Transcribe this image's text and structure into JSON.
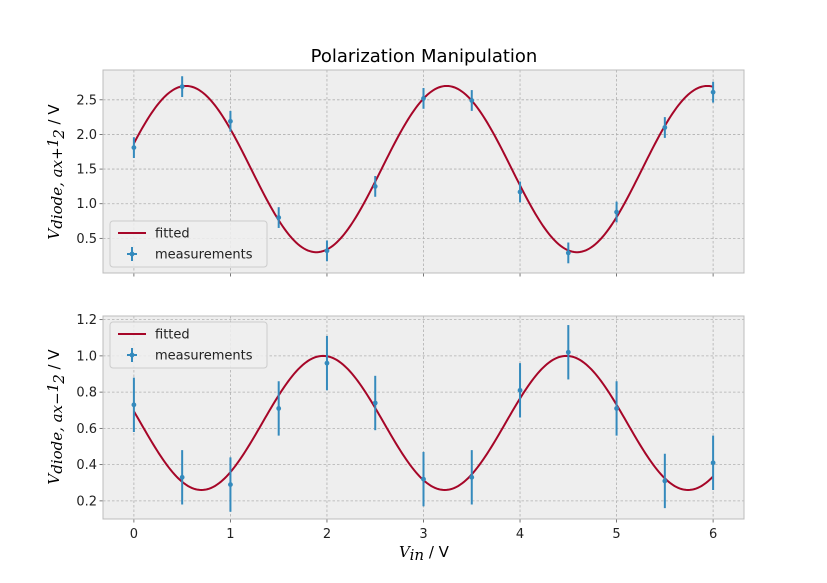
{
  "chart_data": {
    "type": "scatter",
    "title": "Polarization Manipulation",
    "xlabel": "V_in / V",
    "colors": {
      "fit": "#A60628",
      "meas": "#348ABD",
      "plot_bg": "#EEEEEE",
      "grid": "#B0B0B0"
    },
    "panels": [
      {
        "ylabel": "V_diode, ax+1/2 / V",
        "xlim": [
          -0.32,
          6.32
        ],
        "ylim": [
          0.0,
          2.93
        ],
        "xticks": [
          0,
          1,
          2,
          3,
          4,
          5,
          6
        ],
        "yticks": [
          0.5,
          1.0,
          1.5,
          2.0,
          2.5
        ],
        "ytick_labels": [
          "0.5",
          "1.0",
          "1.5",
          "2.0",
          "2.5"
        ],
        "legend": {
          "position": "lower-left",
          "entries": [
            "fitted",
            "measurements"
          ]
        },
        "fit": {
          "label": "fitted",
          "amplitude": 1.2,
          "offset": 1.5,
          "period": 2.7,
          "phase_x": 0.54
        },
        "measurements": {
          "label": "measurements",
          "x": [
            0,
            0.5,
            1,
            1.5,
            2,
            2.5,
            3,
            3.5,
            4,
            4.5,
            5,
            5.5,
            6
          ],
          "y": [
            1.81,
            2.69,
            2.19,
            0.8,
            0.32,
            1.25,
            2.52,
            2.49,
            1.17,
            0.29,
            0.88,
            2.1,
            2.61
          ],
          "yerr": [
            0.15,
            0.15,
            0.15,
            0.15,
            0.15,
            0.15,
            0.15,
            0.15,
            0.15,
            0.15,
            0.15,
            0.15,
            0.15
          ]
        }
      },
      {
        "ylabel": "V_diode, ax-1/2 / V",
        "xlim": [
          -0.32,
          6.32
        ],
        "ylim": [
          0.1,
          1.22
        ],
        "xticks": [
          0,
          1,
          2,
          3,
          4,
          5,
          6
        ],
        "xtick_labels": [
          "0",
          "1",
          "2",
          "3",
          "4",
          "5",
          "6"
        ],
        "yticks": [
          0.2,
          0.4,
          0.6,
          0.8,
          1.0,
          1.2
        ],
        "ytick_labels": [
          "0.2",
          "0.4",
          "0.6",
          "0.8",
          "1.0",
          "1.2"
        ],
        "legend": {
          "position": "upper-left",
          "entries": [
            "fitted",
            "measurements"
          ]
        },
        "fit": {
          "label": "fitted",
          "amplitude": 0.37,
          "offset": 0.63,
          "period": 2.52,
          "phase_x": 1.96
        },
        "measurements": {
          "label": "measurements",
          "x": [
            0,
            0.5,
            1,
            1.5,
            2,
            2.5,
            3,
            3.5,
            4,
            4.5,
            5,
            5.5,
            6
          ],
          "y": [
            0.73,
            0.33,
            0.29,
            0.71,
            0.96,
            0.74,
            0.32,
            0.33,
            0.81,
            1.02,
            0.71,
            0.31,
            0.41
          ],
          "yerr": [
            0.15,
            0.15,
            0.15,
            0.15,
            0.15,
            0.15,
            0.15,
            0.15,
            0.15,
            0.15,
            0.15,
            0.15,
            0.15
          ]
        }
      }
    ]
  }
}
